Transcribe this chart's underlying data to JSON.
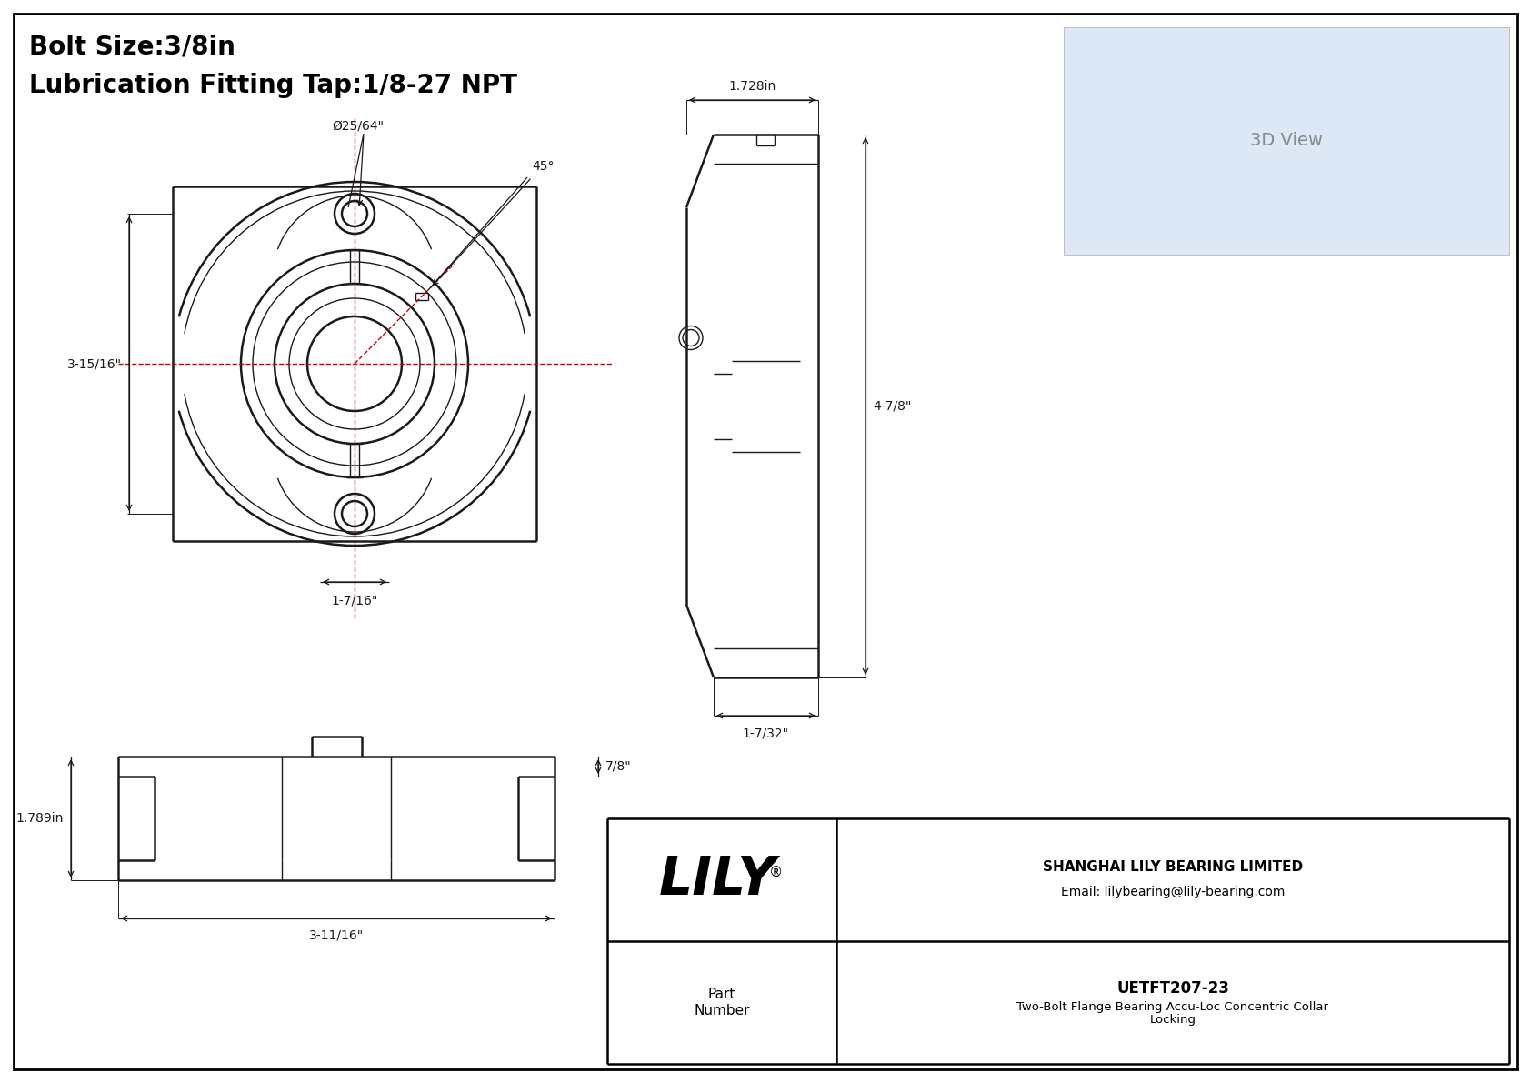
{
  "bg_color": "#ffffff",
  "line_color": "#1a1a1a",
  "dim_color": "#1a1a1a",
  "red_color": "#cc0000",
  "title_line1": "Bolt Size:3/8in",
  "title_line2": "Lubrication Fitting Tap:1/8-27 NPT",
  "company": "SHANGHAI LILY BEARING LIMITED",
  "email": "Email: lilybearing@lily-bearing.com",
  "part_label": "Part\nNumber",
  "part_number": "UETFT207-23",
  "part_desc": "Two-Bolt Flange Bearing Accu-Loc Concentric Collar\nLocking",
  "lily_text": "LILY",
  "dim_1728": "1.728in",
  "dim_4_7_8": "4-7/8\"",
  "dim_1_7_32": "1-7/32\"",
  "dim_3_15_16": "3-15/16\"",
  "dim_1_7_16": "1-7/16\"",
  "dim_phi_25_64": "Ø25/64\"",
  "dim_45": "45°",
  "dim_7_8": "7/8\"",
  "dim_1_789": "1.789in",
  "dim_3_11_16": "3-11/16\""
}
